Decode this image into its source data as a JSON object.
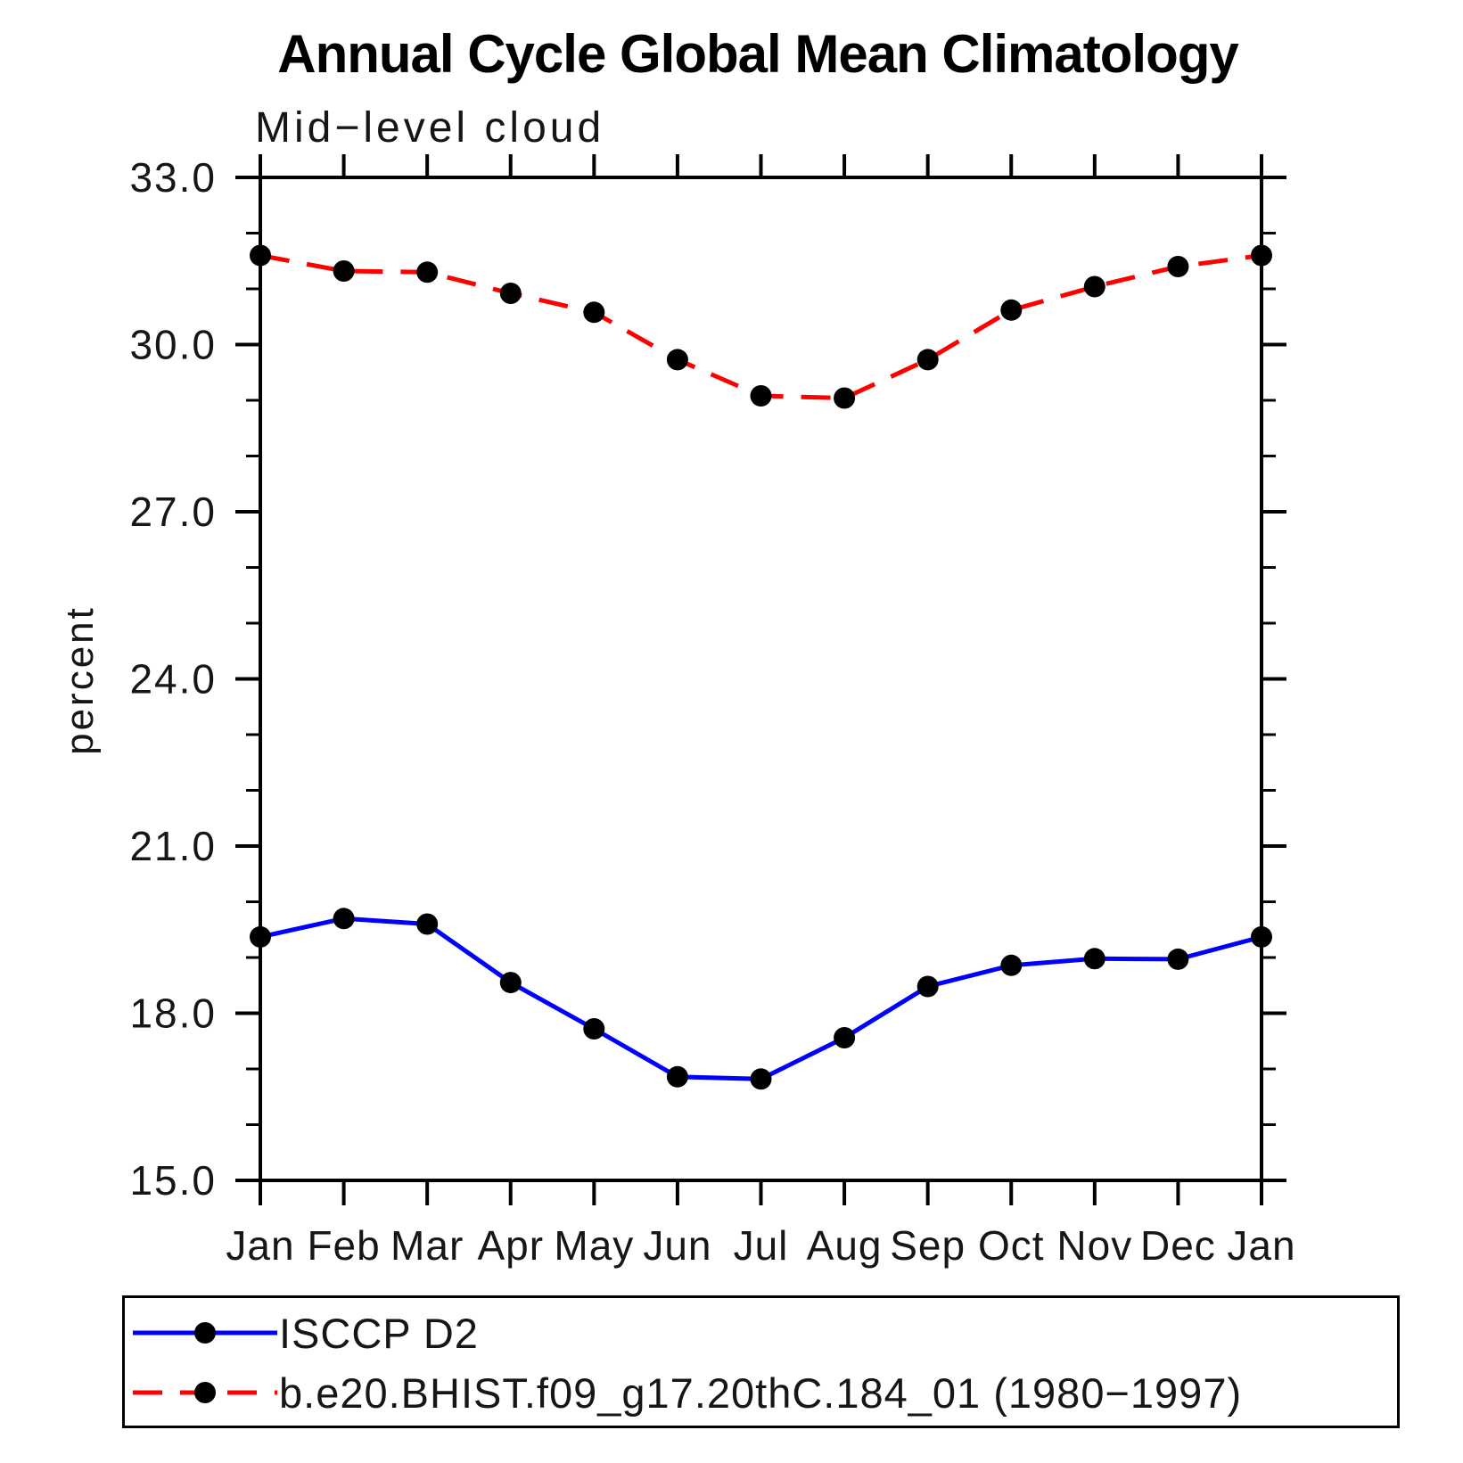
{
  "chart_data": {
    "type": "line",
    "title": "Annual Cycle Global Mean Climatology",
    "subtitle": "Mid−level cloud",
    "ylabel": "percent",
    "xlabel": "",
    "categories": [
      "Jan",
      "Feb",
      "Mar",
      "Apr",
      "May",
      "Jun",
      "Jul",
      "Aug",
      "Sep",
      "Oct",
      "Nov",
      "Dec",
      "Jan"
    ],
    "y_axis": {
      "min": 15.0,
      "max": 33.0,
      "major_ticks": [
        15.0,
        18.0,
        21.0,
        24.0,
        27.0,
        30.0,
        33.0
      ],
      "major_tick_labels": [
        "15.0",
        "18.0",
        "21.0",
        "24.0",
        "27.0",
        "30.0",
        "33.0"
      ],
      "minor_tick_interval": 1.0
    },
    "grid": false,
    "legend_position": "bottom-left-box",
    "series": [
      {
        "name": "ISCCP D2",
        "color": "#0000ff",
        "line_style": "solid",
        "marker": "filled-circle",
        "marker_color": "#000000",
        "values": [
          19.37,
          19.7,
          19.6,
          18.55,
          17.72,
          16.86,
          16.82,
          17.56,
          18.48,
          18.86,
          18.98,
          18.97,
          19.37
        ]
      },
      {
        "name": "b.e20.BHIST.f09_g17.20thC.184_01 (1980−1997)",
        "color": "#ff0000",
        "line_style": "dashed",
        "marker": "filled-circle",
        "marker_color": "#000000",
        "values": [
          31.6,
          31.32,
          31.3,
          30.92,
          30.58,
          29.73,
          29.08,
          29.04,
          29.73,
          30.62,
          31.04,
          31.4,
          31.6
        ]
      }
    ]
  }
}
